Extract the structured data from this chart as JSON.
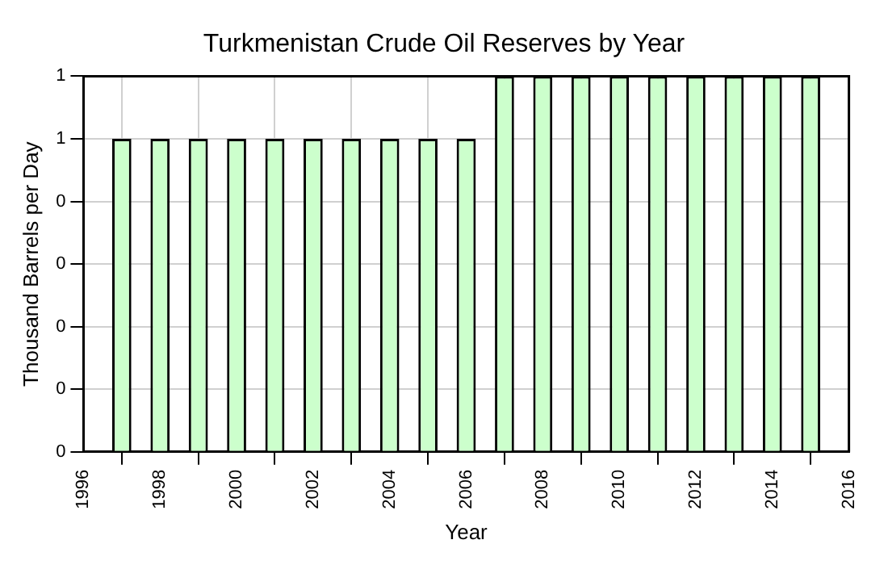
{
  "chart_data": {
    "type": "bar",
    "title": "Turkmenistan Crude Oil Reserves by Year",
    "xlabel": "Year",
    "ylabel": "Thousand Barrels per Day",
    "x": [
      1997,
      1998,
      1999,
      2000,
      2001,
      2002,
      2003,
      2004,
      2005,
      2006,
      2007,
      2008,
      2009,
      2010,
      2011,
      2012,
      2013,
      2014,
      2015
    ],
    "values": [
      0.5,
      0.5,
      0.5,
      0.5,
      0.5,
      0.5,
      0.5,
      0.5,
      0.5,
      0.5,
      0.6,
      0.6,
      0.6,
      0.6,
      0.6,
      0.6,
      0.6,
      0.6,
      0.6
    ],
    "color": "#ccffcc",
    "xlim": [
      1996,
      2016
    ],
    "xticks": [
      1996,
      1998,
      2000,
      2002,
      2004,
      2006,
      2008,
      2010,
      2012,
      2014,
      2016
    ],
    "ylim": [
      0,
      0.6
    ],
    "yticks": [
      {
        "value": 0,
        "label": "0"
      },
      {
        "value": 0.1,
        "label": "0"
      },
      {
        "value": 0.2,
        "label": "0"
      },
      {
        "value": 0.3,
        "label": "0"
      },
      {
        "value": 0.4,
        "label": "0"
      },
      {
        "value": 0.5,
        "label": "1"
      },
      {
        "value": 0.6,
        "label": "1"
      }
    ],
    "grid": true
  }
}
